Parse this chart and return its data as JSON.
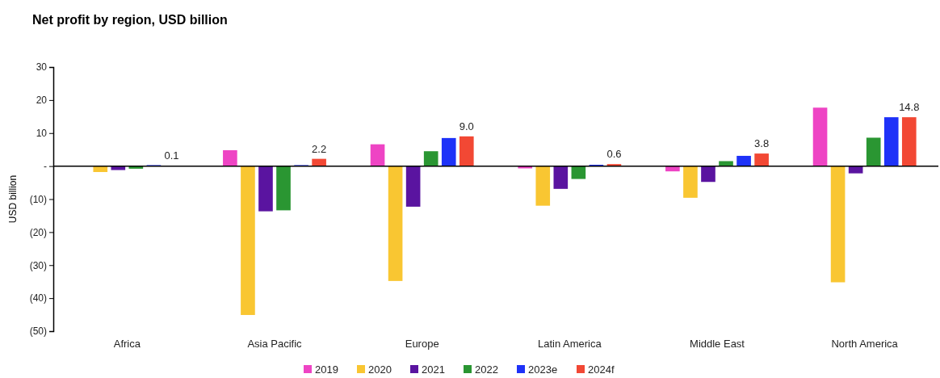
{
  "chart_data": {
    "type": "bar",
    "title": "Net profit by region, USD billion",
    "ylabel": "USD billion",
    "categories": [
      "Africa",
      "Asia Pacific",
      "Europe",
      "Latin America",
      "Middle East",
      "North America"
    ],
    "series": [
      {
        "name": "2019",
        "color": "#ee44c4",
        "values": [
          0,
          4.8,
          6.6,
          -0.7,
          -1.6,
          17.7
        ]
      },
      {
        "name": "2020",
        "color": "#f9c632",
        "values": [
          -1.8,
          -45.1,
          -34.8,
          -12.0,
          -9.6,
          -35.2
        ]
      },
      {
        "name": "2021",
        "color": "#5a14a0",
        "values": [
          -1.2,
          -13.7,
          -12.3,
          -6.9,
          -4.8,
          -2.2
        ]
      },
      {
        "name": "2022",
        "color": "#2a9632",
        "values": [
          -0.8,
          -13.4,
          4.5,
          -3.9,
          1.5,
          8.6
        ]
      },
      {
        "name": "2023e",
        "color": "#1e32f8",
        "values": [
          0.3,
          0.3,
          8.5,
          0.4,
          3.1,
          14.8
        ]
      },
      {
        "name": "2024f",
        "color": "#f24834",
        "values": [
          0.1,
          2.2,
          9.0,
          0.6,
          3.8,
          14.8
        ],
        "value_labels": [
          "0.1",
          "2.2",
          "9.0",
          "0.6",
          "3.8",
          "14.8"
        ]
      }
    ],
    "ylim": [
      -50,
      30
    ],
    "yticks": [
      {
        "value": -50,
        "label": "(50)"
      },
      {
        "value": -40,
        "label": "(40)"
      },
      {
        "value": -30,
        "label": "(30)"
      },
      {
        "value": -20,
        "label": "(20)"
      },
      {
        "value": -10,
        "label": "(10)"
      },
      {
        "value": 0,
        "label": "-"
      },
      10,
      20,
      30
    ],
    "legend": "bottom"
  }
}
